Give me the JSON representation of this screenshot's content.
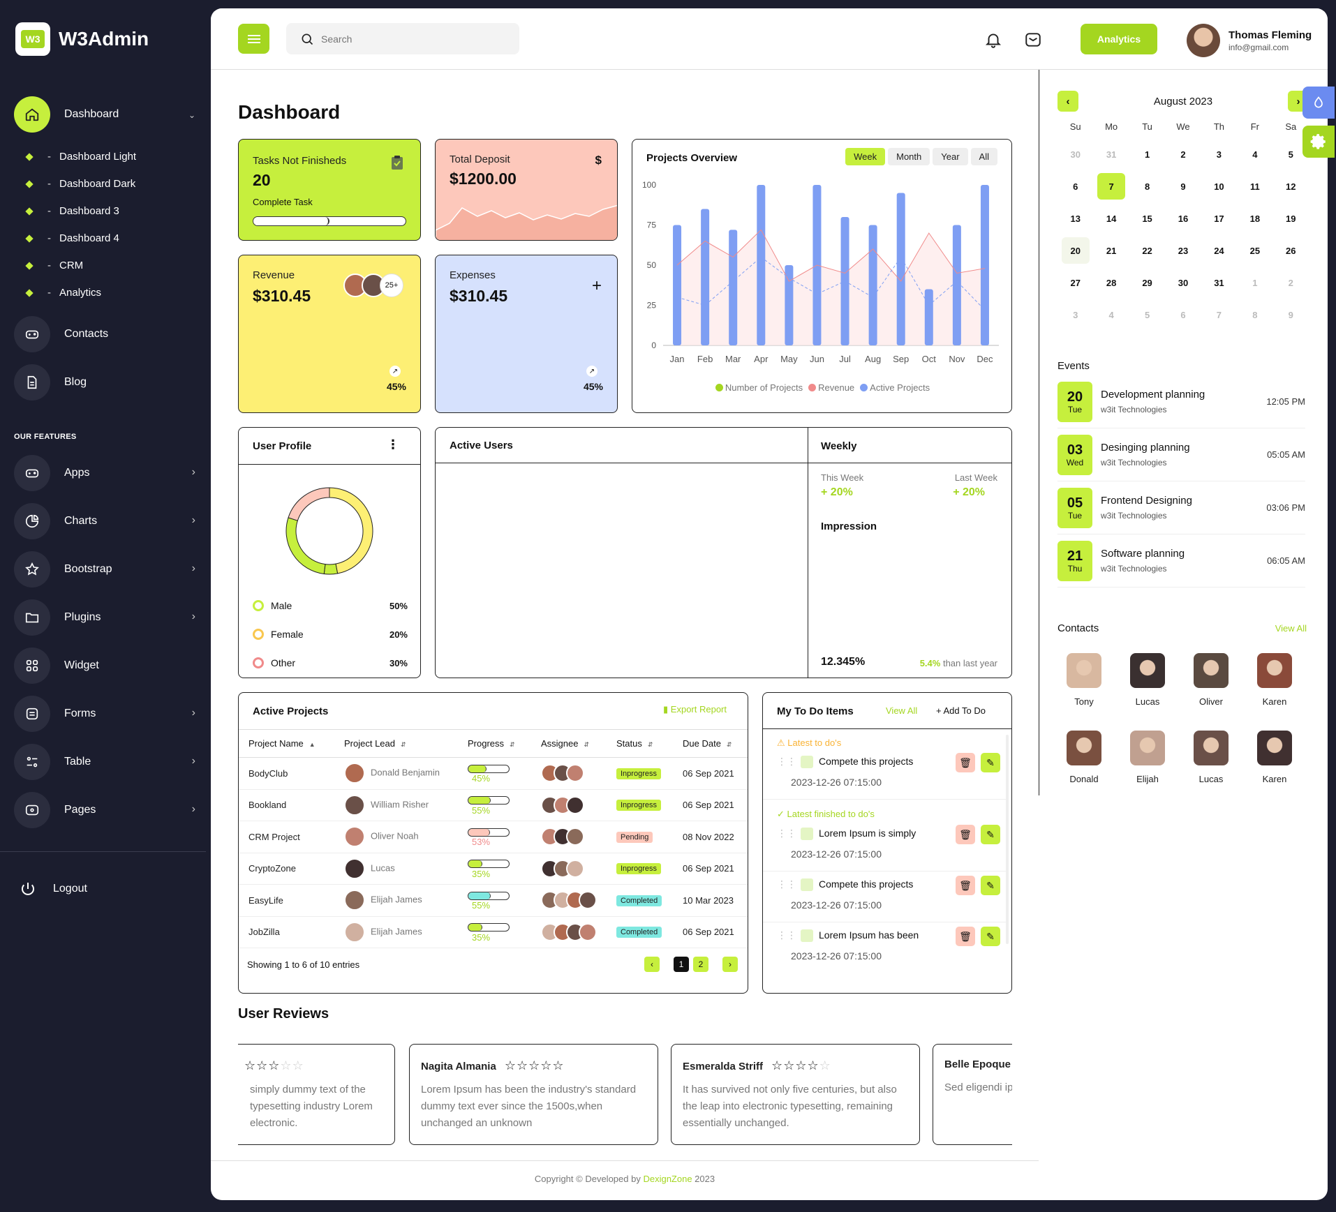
{
  "brand": {
    "logo_text": "W3",
    "name": "W3Admin"
  },
  "sidebar": {
    "main": {
      "label": "Dashboard"
    },
    "subitems": [
      "Dashboard Light",
      "Dashboard Dark",
      "Dashboard 3",
      "Dashboard 4",
      "CRM",
      "Analytics"
    ],
    "items": [
      {
        "label": "Contacts",
        "icon": "gamepad-icon"
      },
      {
        "label": "Blog",
        "icon": "document-icon"
      }
    ],
    "features_title": "OUR FEATURES",
    "features": [
      {
        "label": "Apps",
        "icon": "gamepad-icon",
        "chevron": true
      },
      {
        "label": "Charts",
        "icon": "pie-chart-icon",
        "chevron": true
      },
      {
        "label": "Bootstrap",
        "icon": "star-icon",
        "chevron": true
      },
      {
        "label": "Plugins",
        "icon": "folder-icon",
        "chevron": true
      },
      {
        "label": "Widget",
        "icon": "grid-icon",
        "chevron": false
      },
      {
        "label": "Forms",
        "icon": "form-icon",
        "chevron": true
      },
      {
        "label": "Table",
        "icon": "table-icon",
        "chevron": true
      },
      {
        "label": "Pages",
        "icon": "pages-icon",
        "chevron": true
      }
    ],
    "logout": "Logout"
  },
  "header": {
    "search_placeholder": "Search",
    "analytics_button": "Analytics",
    "user_name": "Thomas Fleming",
    "user_email": "info@gmail.com"
  },
  "page_title": "Dashboard",
  "kpis": {
    "tasks": {
      "label": "Tasks Not Finisheds",
      "value": "20",
      "sub": "Complete Task",
      "progress": 0.5,
      "color": "#c6ef3d"
    },
    "deposit": {
      "label": "Total Deposit",
      "value": "$1200.00",
      "icon_text": "$",
      "color": "#fdc8bb"
    },
    "revenue": {
      "label": "Revenue",
      "value": "$310.45",
      "more": "25+",
      "pct": "45%",
      "color": "#fdef74"
    },
    "expenses": {
      "label": "Expenses",
      "value": "$310.45",
      "pct": "45%",
      "color": "#d6e1fd"
    }
  },
  "projects_overview": {
    "title": "Projects Overview",
    "tabs": [
      "Week",
      "Month",
      "Year",
      "All"
    ],
    "active_tab": "Week"
  },
  "chart_data": {
    "type": "bar",
    "categories": [
      "Jan",
      "Feb",
      "Mar",
      "Apr",
      "May",
      "Jun",
      "Jul",
      "Aug",
      "Sep",
      "Oct",
      "Nov",
      "Dec"
    ],
    "ylim": [
      0,
      100
    ],
    "yticks": [
      0,
      25,
      50,
      75,
      100
    ],
    "series": [
      {
        "name": "Active Projects",
        "type": "bar",
        "color": "#7e9ef3",
        "values": [
          75,
          85,
          72,
          100,
          50,
          100,
          80,
          75,
          95,
          35,
          75,
          100
        ]
      },
      {
        "name": "Revenue",
        "type": "area",
        "color": "#f08a8a",
        "values": [
          50,
          65,
          55,
          72,
          40,
          50,
          45,
          60,
          40,
          70,
          45,
          48
        ]
      },
      {
        "name": "Number of Projects",
        "type": "line",
        "color": "#a4d620",
        "values": [
          30,
          25,
          40,
          55,
          42,
          32,
          40,
          30,
          55,
          25,
          40,
          22
        ]
      }
    ]
  },
  "user_profile": {
    "title": "User Profile",
    "items": [
      {
        "label": "Male",
        "value": "50%",
        "color": "#c6ef3d"
      },
      {
        "label": "Female",
        "value": "20%",
        "color": "#f9c74f"
      },
      {
        "label": "Other",
        "value": "30%",
        "color": "#f08a8a"
      }
    ]
  },
  "active_users": {
    "title": "Active Users"
  },
  "weekly": {
    "title": "Weekly",
    "this_week_label": "This Week",
    "this_week_value": "+ 20%",
    "last_week_label": "Last Week",
    "last_week_value": "+ 20%",
    "impression": "Impression",
    "total": "12.345%",
    "growth_pct": "5.4%",
    "growth_text": "than last year"
  },
  "active_projects": {
    "title": "Active Projects",
    "export": "Export Report",
    "columns": [
      "Project Name",
      "Project Lead",
      "Progress",
      "Assignee",
      "Status",
      "Due Date"
    ],
    "rows": [
      {
        "name": "BodyClub",
        "lead": "Donald Benjamin",
        "progress": 45,
        "pct": "45%",
        "status": "Inprogress",
        "date": "06 Sep 2021",
        "bar": "#c6ef3d",
        "badge": "#c6ef3d"
      },
      {
        "name": "Bookland",
        "lead": "William Risher",
        "progress": 55,
        "pct": "55%",
        "status": "Inprogress",
        "date": "06 Sep 2021",
        "bar": "#c6ef3d",
        "badge": "#c6ef3d"
      },
      {
        "name": "CRM Project",
        "lead": "Oliver Noah",
        "progress": 53,
        "pct": "53%",
        "status": "Pending",
        "date": "08 Nov 2022",
        "bar": "#fdc8bb",
        "badge": "#fdc8bb"
      },
      {
        "name": "CryptoZone",
        "lead": "Lucas",
        "progress": 35,
        "pct": "35%",
        "status": "Inprogress",
        "date": "06 Sep 2021",
        "bar": "#c6ef3d",
        "badge": "#c6ef3d"
      },
      {
        "name": "EasyLife",
        "lead": "Elijah James",
        "progress": 55,
        "pct": "55%",
        "status": "Completed",
        "date": "10 Mar 2023",
        "bar": "#7ee8e0",
        "badge": "#7ee8e0"
      },
      {
        "name": "JobZilla",
        "lead": "Elijah James",
        "progress": 35,
        "pct": "35%",
        "status": "Completed",
        "date": "06 Sep 2021",
        "bar": "#c6ef3d",
        "badge": "#7ee8e0"
      }
    ],
    "showing": "Showing 1 to 6 of 10 entries",
    "pages": [
      "1",
      "2"
    ]
  },
  "todo": {
    "title": "My To Do Items",
    "view_all": "View All",
    "add": "+ Add To Do",
    "latest": "Latest to do's",
    "finished": "Latest finished to do's",
    "items": [
      {
        "text": "Compete this projects",
        "time": "2023-12-26 07:15:00"
      },
      {
        "text": "Lorem Ipsum is simply",
        "time": "2023-12-26 07:15:00"
      },
      {
        "text": "Compete this projects",
        "time": "2023-12-26 07:15:00"
      },
      {
        "text": "Lorem Ipsum has been",
        "time": "2023-12-26 07:15:00"
      }
    ]
  },
  "reviews": {
    "title": "User Reviews",
    "items": [
      {
        "name": "",
        "stars": 3,
        "text": "simply dummy text of the typesetting industry Lorem electronic."
      },
      {
        "name": "Nagita Almania",
        "stars": 5,
        "text": "Lorem Ipsum has been the industry's standard dummy text ever since the 1500s,when unchanged an unknown"
      },
      {
        "name": "Esmeralda Striff",
        "stars": 4,
        "text": "It has survived not only five centuries, but also the leap into electronic typesetting, remaining essentially unchanged."
      },
      {
        "name": "Belle Epoque",
        "stars": 0,
        "text": "Sed eligendi ipsam incidu sit asperiore"
      }
    ]
  },
  "footer": {
    "prefix": "Copyright © Developed by ",
    "link": "DexignZone",
    "suffix": " 2023"
  },
  "calendar": {
    "month": "August 2023",
    "dow": [
      "Su",
      "Mo",
      "Tu",
      "We",
      "Th",
      "Fr",
      "Sa"
    ],
    "days": [
      "30",
      "31",
      "1",
      "2",
      "3",
      "4",
      "5",
      "6",
      "7",
      "8",
      "9",
      "10",
      "11",
      "12",
      "13",
      "14",
      "15",
      "16",
      "17",
      "18",
      "19",
      "20",
      "21",
      "22",
      "23",
      "24",
      "25",
      "26",
      "27",
      "28",
      "29",
      "30",
      "31",
      "1",
      "2",
      "3",
      "4",
      "5",
      "6",
      "7",
      "8",
      "9"
    ],
    "selected": "7",
    "today": "20"
  },
  "events": {
    "title": "Events",
    "items": [
      {
        "day": "20",
        "dow": "Tue",
        "title": "Development planning",
        "sub": "w3it Technologies",
        "time": "12:05 PM"
      },
      {
        "day": "03",
        "dow": "Wed",
        "title": "Desinging planning",
        "sub": "w3it Technologies",
        "time": "05:05 AM"
      },
      {
        "day": "05",
        "dow": "Tue",
        "title": "Frontend Designing",
        "sub": "w3it Technologies",
        "time": "03:06 PM"
      },
      {
        "day": "21",
        "dow": "Thu",
        "title": "Software planning",
        "sub": "w3it Technologies",
        "time": "06:05 AM"
      }
    ]
  },
  "contacts": {
    "title": "Contacts",
    "view_all": "View All",
    "items": [
      {
        "name": "Tony",
        "color": "#d8b8a0"
      },
      {
        "name": "Lucas",
        "color": "#3a3030"
      },
      {
        "name": "Oliver",
        "color": "#5a4a40"
      },
      {
        "name": "Karen",
        "color": "#8a4a3a"
      },
      {
        "name": "Donald",
        "color": "#7a5040"
      },
      {
        "name": "Elijah",
        "color": "#c0a090"
      },
      {
        "name": "Lucas",
        "color": "#6a5048"
      },
      {
        "name": "Karen",
        "color": "#403030"
      }
    ]
  }
}
